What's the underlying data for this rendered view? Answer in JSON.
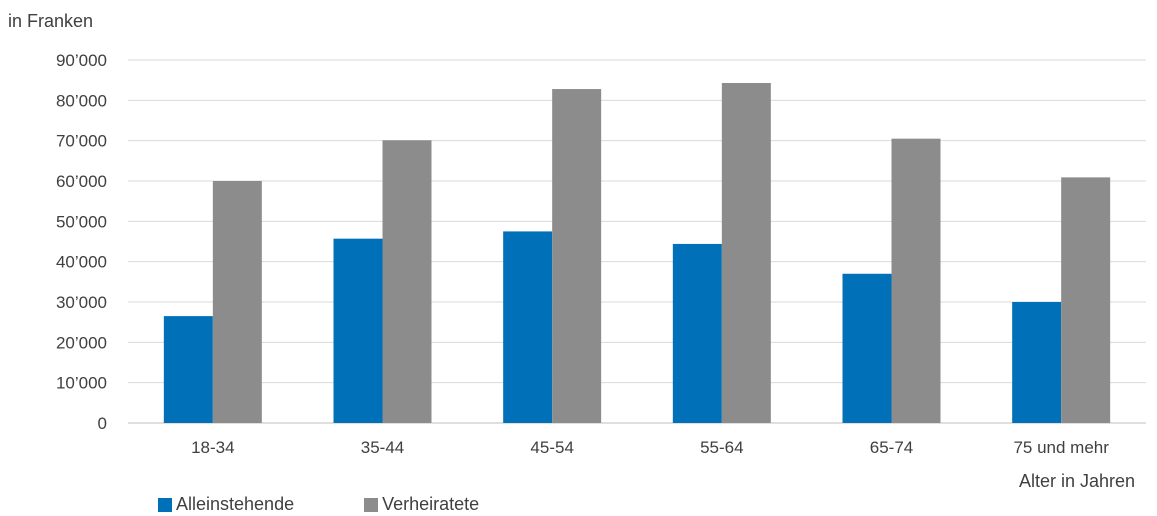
{
  "chart_data": {
    "type": "bar",
    "title": "",
    "ylabel": "in Franken",
    "xlabel": "Alter in Jahren",
    "categories": [
      "18-34",
      "35-44",
      "45-54",
      "55-64",
      "65-74",
      "75 und mehr"
    ],
    "series": [
      {
        "name": "Alleinstehende",
        "color": "#0070b8",
        "values": [
          26500,
          45700,
          47500,
          44400,
          37000,
          30000
        ]
      },
      {
        "name": "Verheiratete",
        "color": "#8c8c8c",
        "values": [
          60000,
          70100,
          82800,
          84300,
          70500,
          60900
        ]
      }
    ],
    "ylim": [
      0,
      90000
    ],
    "yticks": [
      0,
      10000,
      20000,
      30000,
      40000,
      50000,
      60000,
      70000,
      80000,
      90000
    ],
    "ytick_labels": [
      "0",
      "10’000",
      "20’000",
      "30’000",
      "40’000",
      "50’000",
      "60’000",
      "70’000",
      "80’000",
      "90’000"
    ],
    "grid": true,
    "legend_position": "bottom-left"
  }
}
